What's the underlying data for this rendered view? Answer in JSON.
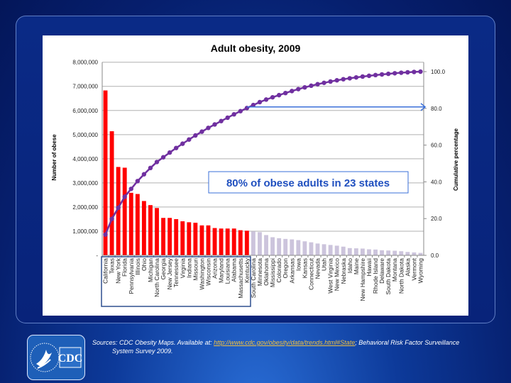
{
  "chart_data": {
    "type": "bar+line",
    "title": "Adult obesity, 2009",
    "ylabel": "Number of obese",
    "y2label": "Cumulative percentage",
    "ylim": [
      0,
      8000000
    ],
    "y2lim": [
      0,
      100
    ],
    "yticks": [
      "-",
      "1,000,000",
      "2,000,000",
      "3,000,000",
      "4,000,000",
      "5,000,000",
      "6,000,000",
      "7,000,000",
      "8,000,000"
    ],
    "y2ticks": [
      "0.0",
      "20.0",
      "40.0",
      "60.0",
      "80.0",
      "100.0"
    ],
    "grid": true,
    "categories": [
      "California",
      "Texas",
      "New York",
      "Florida",
      "Pennsylvania",
      "Illinois",
      "Ohio",
      "Michigan",
      "North Carolina",
      "Georgia",
      "New Jersey",
      "Tennessee",
      "Virginia",
      "Indiana",
      "Missouri",
      "Washington",
      "Wisconsin",
      "Arizona",
      "Maryland",
      "Louisiana",
      "Alabama",
      "Massachusetts",
      "Kentucky",
      "South Carolina",
      "Minnesota",
      "Oklahoma",
      "Mississippi",
      "Colorado",
      "Oregon",
      "Arkansas",
      "Iowa",
      "Kansas",
      "Connecticut",
      "Nevada",
      "Utah",
      "West Virginia",
      "New Mexico",
      "Nebraska",
      "Idaho",
      "Maine",
      "New Hampshire",
      "Hawaii",
      "Rhode Island",
      "Delaware",
      "South Dakota",
      "Montana",
      "North Dakota",
      "Alaska",
      "Vermont",
      "Wyoming"
    ],
    "values": [
      6830000,
      5140000,
      3660000,
      3630000,
      2590000,
      2540000,
      2250000,
      2080000,
      1960000,
      1550000,
      1550000,
      1500000,
      1410000,
      1370000,
      1350000,
      1240000,
      1240000,
      1130000,
      1110000,
      1110000,
      1110000,
      1040000,
      1020000,
      990000,
      960000,
      840000,
      750000,
      710000,
      680000,
      660000,
      630000,
      580000,
      540000,
      490000,
      460000,
      430000,
      400000,
      360000,
      300000,
      290000,
      280000,
      250000,
      240000,
      210000,
      200000,
      190000,
      170000,
      140000,
      120000,
      100000
    ],
    "highlight_count": 23,
    "colors": {
      "highlight_bar": "#ff0000",
      "other_bar": "#ccc4dc",
      "cumulative_line": "#7030a0",
      "annotation": "#1f4fbf",
      "arrow": "#3a6fd8"
    },
    "annotation": "80% of obese adults in 23 states",
    "arrow_level": 80
  },
  "footer": {
    "sources_prefix": "Sources: CDC Obesity Maps. Available at:",
    "sources_link": "http://www.cdc.gov/obesity/data/trends.html#State",
    "sources_suffix": "; Behavioral Risk Factor Surveillance",
    "sources_line2": "System Survey 2009.",
    "logo_text": "CDC"
  }
}
